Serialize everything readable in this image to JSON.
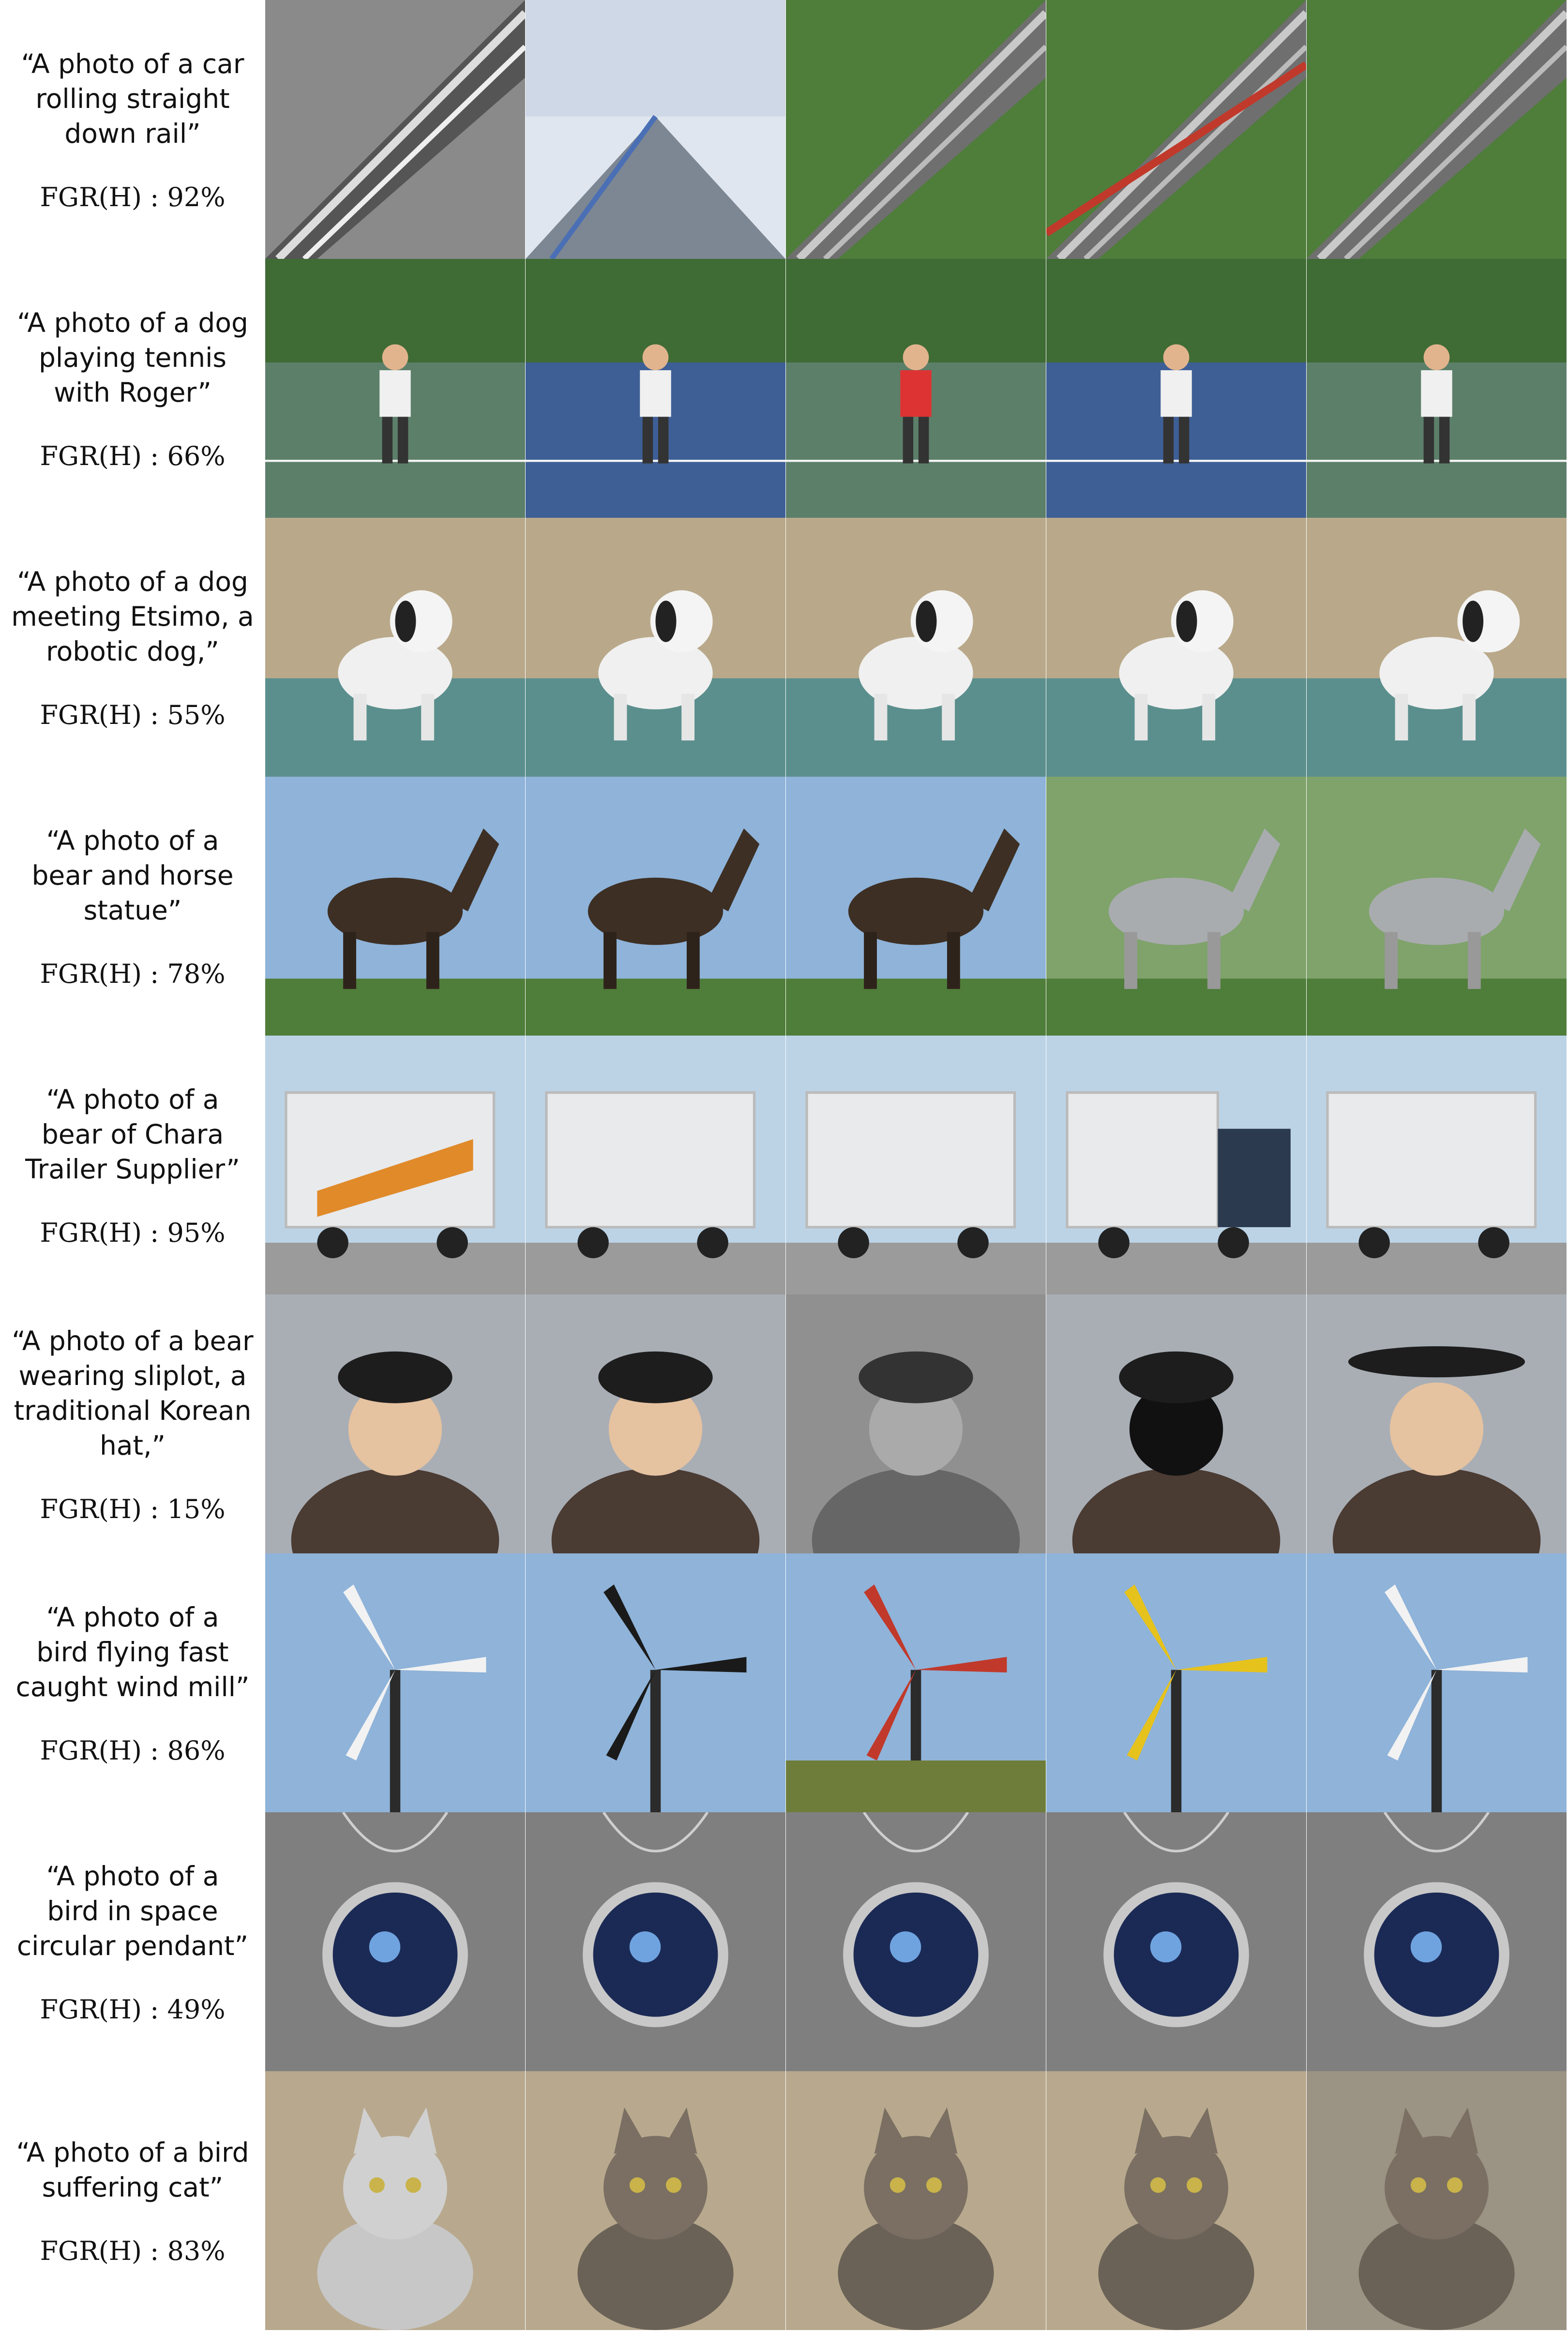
{
  "rows": [
    {
      "prompt": "“A photo of a car\nrolling straight\ndown rail”",
      "metric": "FGR(H) : 92%",
      "images": [
        "rail-track-bw",
        "motion-blur-road",
        "rail-hillside",
        "speed-blur-rail",
        "rail-aerial"
      ]
    },
    {
      "prompt": "“A photo of a dog\nplaying tennis\nwith Roger”",
      "metric": "FGR(H) : 66%",
      "images": [
        "tennis-player",
        "tennis-player-lunge",
        "tennis-court-player",
        "tennis-net-ball",
        "tennis-player-cap"
      ]
    },
    {
      "prompt": "“A photo of a dog\nmeeting Etsimo, a\nrobotic dog,”",
      "metric": "FGR(H) : 55%",
      "images": [
        "robot-dog-screen",
        "robot-dog-white",
        "robot-dog-child",
        "robot-dog-small",
        "robot-dog-lying"
      ]
    },
    {
      "prompt": "“A photo of a\nbear and horse\nstatue”",
      "metric": "FGR(H) : 78%",
      "images": [
        "horse-statue-bronze",
        "horse-statues-pair",
        "horse-woman-statue",
        "horse-statues-gray",
        "horse-statue-silver"
      ]
    },
    {
      "prompt": "“A photo of a\nbear of Chara\nTrailer Supplier”",
      "metric": "FGR(H) : 95%",
      "images": [
        "trailer-truck-orange",
        "trailer-white",
        "trailer-silver",
        "truck-blue-cab",
        "trailer-white-field"
      ]
    },
    {
      "prompt": "“A photo of a bear\nwearing sliplot, a\ntraditional Korean\nhat,”",
      "metric": "FGR(H) : 15%",
      "images": [
        "man-fur-hat",
        "child-bear-hood",
        "man-knit-hat-bw",
        "bear-mask-person",
        "woman-korean-hat"
      ]
    },
    {
      "prompt": "“A photo of a\nbird flying fast\ncaught wind mill”",
      "metric": "FGR(H) : 86%",
      "images": [
        "windmill-white",
        "windmill-black",
        "windmill-red-blur",
        "windmill-yellow",
        "windmill-tower"
      ]
    },
    {
      "prompt": "“A photo of a\nbird in space\ncircular pendant”",
      "metric": "FGR(H) : 49%",
      "images": [
        "pendant-earth",
        "pendant-shuttle",
        "pendant-galaxy",
        "pendant-planet",
        "pendant-saturn"
      ]
    },
    {
      "prompt": "“A photo of a bird\nsuffering cat”",
      "metric": "FGR(H) : 83%",
      "images": [
        "cat-gray-profile",
        "cat-tabby-closeup",
        "cat-tabby-sitting",
        "cat-calico-lying",
        "cat-small-gray"
      ]
    }
  ],
  "palette": {
    "grass": "#4f7d3a",
    "sky": "#8fb3d9",
    "court": "#5c7f6a",
    "court_blue": "#3e5f96",
    "stone": "#9a9a95",
    "bronze": "#3d2f24",
    "gray_bg": "#7f7f7f",
    "white": "#f2f2f2"
  }
}
